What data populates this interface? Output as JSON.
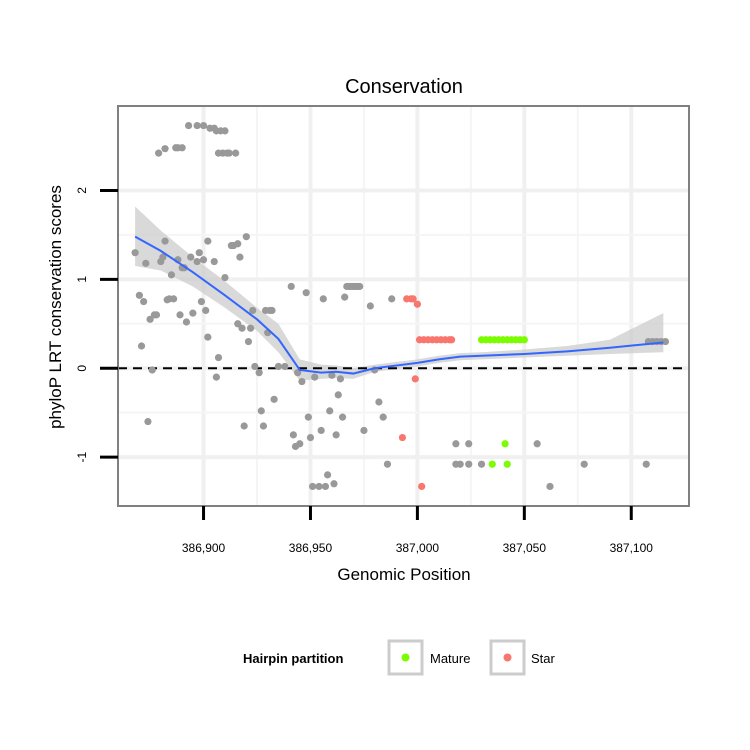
{
  "chart_data": {
    "type": "scatter",
    "title": "Conservation",
    "xlabel": "Genomic Position",
    "ylabel": "phyloP LRT conservation scores",
    "xlim": [
      386860,
      387127
    ],
    "ylim": [
      -1.55,
      2.95
    ],
    "xticks": [
      386900,
      386950,
      387000,
      387050,
      387100
    ],
    "xtick_labels": [
      "386,900",
      "386,950",
      "387,000",
      "387,050",
      "387,100"
    ],
    "yticks": [
      -1,
      0,
      1,
      2
    ],
    "ytick_labels": [
      "-1",
      "0",
      "1",
      "2"
    ],
    "grid": true,
    "reference_line": {
      "y": 0,
      "style": "dashed"
    },
    "legend": {
      "title": "Hairpin partition",
      "position": "bottom",
      "entries": [
        {
          "name": "Mature",
          "color": "#7cfc00"
        },
        {
          "name": "Star",
          "color": "#f8766d"
        }
      ]
    },
    "colors": {
      "other": "#999999",
      "smooth_line": "#3366ff",
      "ci_band": "#cccccc"
    },
    "series": [
      {
        "name": "",
        "color": "#999999",
        "points": [
          [
            386868,
            1.3
          ],
          [
            386870,
            0.82
          ],
          [
            386871,
            0.25
          ],
          [
            386872,
            0.75
          ],
          [
            386873,
            1.18
          ],
          [
            386874,
            -0.6
          ],
          [
            386875,
            0.55
          ],
          [
            386876,
            -0.02
          ],
          [
            386877,
            0.6
          ],
          [
            386878,
            0.6
          ],
          [
            386879,
            2.42
          ],
          [
            386880,
            1.2
          ],
          [
            386881,
            1.25
          ],
          [
            386882,
            2.47
          ],
          [
            386882,
            1.43
          ],
          [
            386883,
            0.77
          ],
          [
            386884,
            0.78
          ],
          [
            386885,
            1.05
          ],
          [
            386886,
            0.78
          ],
          [
            386887,
            2.48
          ],
          [
            386888,
            2.48
          ],
          [
            386888,
            1.22
          ],
          [
            386889,
            0.6
          ],
          [
            386890,
            2.48
          ],
          [
            386890,
            1.13
          ],
          [
            386891,
            1.13
          ],
          [
            386892,
            0.52
          ],
          [
            386893,
            2.73
          ],
          [
            386894,
            1.25
          ],
          [
            386895,
            0.62
          ],
          [
            386897,
            2.73
          ],
          [
            386897,
            1.2
          ],
          [
            386898,
            1.3
          ],
          [
            386899,
            0.75
          ],
          [
            386900,
            2.73
          ],
          [
            386900,
            1.22
          ],
          [
            386901,
            0.65
          ],
          [
            386902,
            1.43
          ],
          [
            386902,
            0.35
          ],
          [
            386903,
            2.7
          ],
          [
            386905,
            2.7
          ],
          [
            386905,
            1.2
          ],
          [
            386906,
            2.67
          ],
          [
            386906,
            -0.1
          ],
          [
            386907,
            2.42
          ],
          [
            386907,
            0.12
          ],
          [
            386908,
            2.67
          ],
          [
            386909,
            2.42
          ],
          [
            386910,
            2.67
          ],
          [
            386910,
            1.02
          ],
          [
            386911,
            2.42
          ],
          [
            386912,
            2.42
          ],
          [
            386913,
            1.38
          ],
          [
            386914,
            1.38
          ],
          [
            386915,
            2.42
          ],
          [
            386916,
            1.4
          ],
          [
            386916,
            0.5
          ],
          [
            386917,
            1.25
          ],
          [
            386918,
            0.45
          ],
          [
            386919,
            -0.65
          ],
          [
            386920,
            1.48
          ],
          [
            386921,
            0.3
          ],
          [
            386922,
            0.45
          ],
          [
            386923,
            0.65
          ],
          [
            386924,
            0.02
          ],
          [
            386926,
            -0.05
          ],
          [
            386927,
            -0.48
          ],
          [
            386928,
            -0.65
          ],
          [
            386929,
            0.65
          ],
          [
            386930,
            0.4
          ],
          [
            386931,
            0.65
          ],
          [
            386932,
            0.65
          ],
          [
            386933,
            -0.35
          ],
          [
            386935,
            0.02
          ],
          [
            386938,
            0.02
          ],
          [
            386941,
            0.92
          ],
          [
            386942,
            -0.75
          ],
          [
            386943,
            -0.88
          ],
          [
            386944,
            -0.05
          ],
          [
            386945,
            -0.85
          ],
          [
            386946,
            -0.15
          ],
          [
            386948,
            0.85
          ],
          [
            386949,
            -0.55
          ],
          [
            386950,
            -0.78
          ],
          [
            386951,
            -1.33
          ],
          [
            386952,
            -0.1
          ],
          [
            386954,
            -1.33
          ],
          [
            386955,
            -0.7
          ],
          [
            386956,
            0.78
          ],
          [
            386957,
            -1.33
          ],
          [
            386958,
            -1.2
          ],
          [
            386959,
            -0.48
          ],
          [
            386960,
            -0.08
          ],
          [
            386961,
            -1.3
          ],
          [
            386962,
            -0.75
          ],
          [
            386963,
            -0.3
          ],
          [
            386964,
            -0.12
          ],
          [
            386965,
            -0.55
          ],
          [
            386966,
            0.8
          ],
          [
            386967,
            0.92
          ],
          [
            386968,
            0.92
          ],
          [
            386969,
            0.92
          ],
          [
            386970,
            0.92
          ],
          [
            386971,
            0.92
          ],
          [
            386972,
            0.92
          ],
          [
            386973,
            0.92
          ],
          [
            386975,
            -0.7
          ],
          [
            386978,
            0.7
          ],
          [
            386980,
            -0.02
          ],
          [
            386982,
            -0.38
          ],
          [
            386984,
            -0.55
          ],
          [
            386986,
            -1.08
          ],
          [
            386988,
            0.78
          ],
          [
            387018,
            -0.85
          ],
          [
            387018,
            -1.08
          ],
          [
            387020,
            -1.08
          ],
          [
            387024,
            -0.85
          ],
          [
            387024,
            -1.08
          ],
          [
            387030,
            -1.08
          ],
          [
            387056,
            -0.85
          ],
          [
            387062,
            -1.33
          ],
          [
            387078,
            -1.08
          ],
          [
            387107,
            -1.08
          ],
          [
            387108,
            0.3
          ],
          [
            387110,
            0.3
          ],
          [
            387112,
            0.3
          ],
          [
            387114,
            0.3
          ],
          [
            387116,
            0.3
          ]
        ]
      },
      {
        "name": "Star",
        "color": "#f8766d",
        "points": [
          [
            386995,
            0.78
          ],
          [
            386997,
            0.78
          ],
          [
            386998,
            0.78
          ],
          [
            387000,
            0.72
          ],
          [
            387001,
            0.32
          ],
          [
            387003,
            0.32
          ],
          [
            387005,
            0.32
          ],
          [
            387007,
            0.32
          ],
          [
            387009,
            0.32
          ],
          [
            387011,
            0.32
          ],
          [
            387013,
            0.32
          ],
          [
            387015,
            0.32
          ],
          [
            387016,
            0.32
          ],
          [
            386993,
            -0.78
          ],
          [
            386999,
            -0.12
          ],
          [
            387002,
            -1.33
          ]
        ]
      },
      {
        "name": "Mature",
        "color": "#7cfc00",
        "points": [
          [
            387030,
            0.32
          ],
          [
            387032,
            0.32
          ],
          [
            387034,
            0.32
          ],
          [
            387036,
            0.32
          ],
          [
            387038,
            0.32
          ],
          [
            387040,
            0.32
          ],
          [
            387042,
            0.32
          ],
          [
            387044,
            0.32
          ],
          [
            387046,
            0.32
          ],
          [
            387048,
            0.32
          ],
          [
            387050,
            0.32
          ],
          [
            387041,
            -0.85
          ],
          [
            387035,
            -1.08
          ],
          [
            387042,
            -1.08
          ]
        ]
      }
    ],
    "smooth": {
      "x": [
        386868,
        386880,
        386895,
        386910,
        386925,
        386935,
        386945,
        386955,
        386962,
        386970,
        386980,
        386990,
        387000,
        387010,
        387020,
        387030,
        387050,
        387070,
        387090,
        387115
      ],
      "y": [
        1.48,
        1.32,
        1.08,
        0.82,
        0.55,
        0.33,
        -0.02,
        -0.05,
        -0.04,
        -0.06,
        0.0,
        0.03,
        0.06,
        0.1,
        0.13,
        0.14,
        0.16,
        0.19,
        0.23,
        0.29
      ],
      "ci_lower": [
        1.15,
        1.1,
        0.92,
        0.68,
        0.42,
        0.18,
        -0.14,
        -0.12,
        -0.11,
        -0.12,
        -0.04,
        -0.01,
        0.02,
        0.06,
        0.09,
        0.1,
        0.12,
        0.14,
        0.16,
        0.18
      ],
      "ci_upper": [
        1.82,
        1.55,
        1.25,
        0.98,
        0.68,
        0.5,
        0.1,
        0.04,
        0.03,
        0.0,
        0.04,
        0.07,
        0.1,
        0.14,
        0.17,
        0.18,
        0.21,
        0.25,
        0.32,
        0.62
      ]
    }
  }
}
